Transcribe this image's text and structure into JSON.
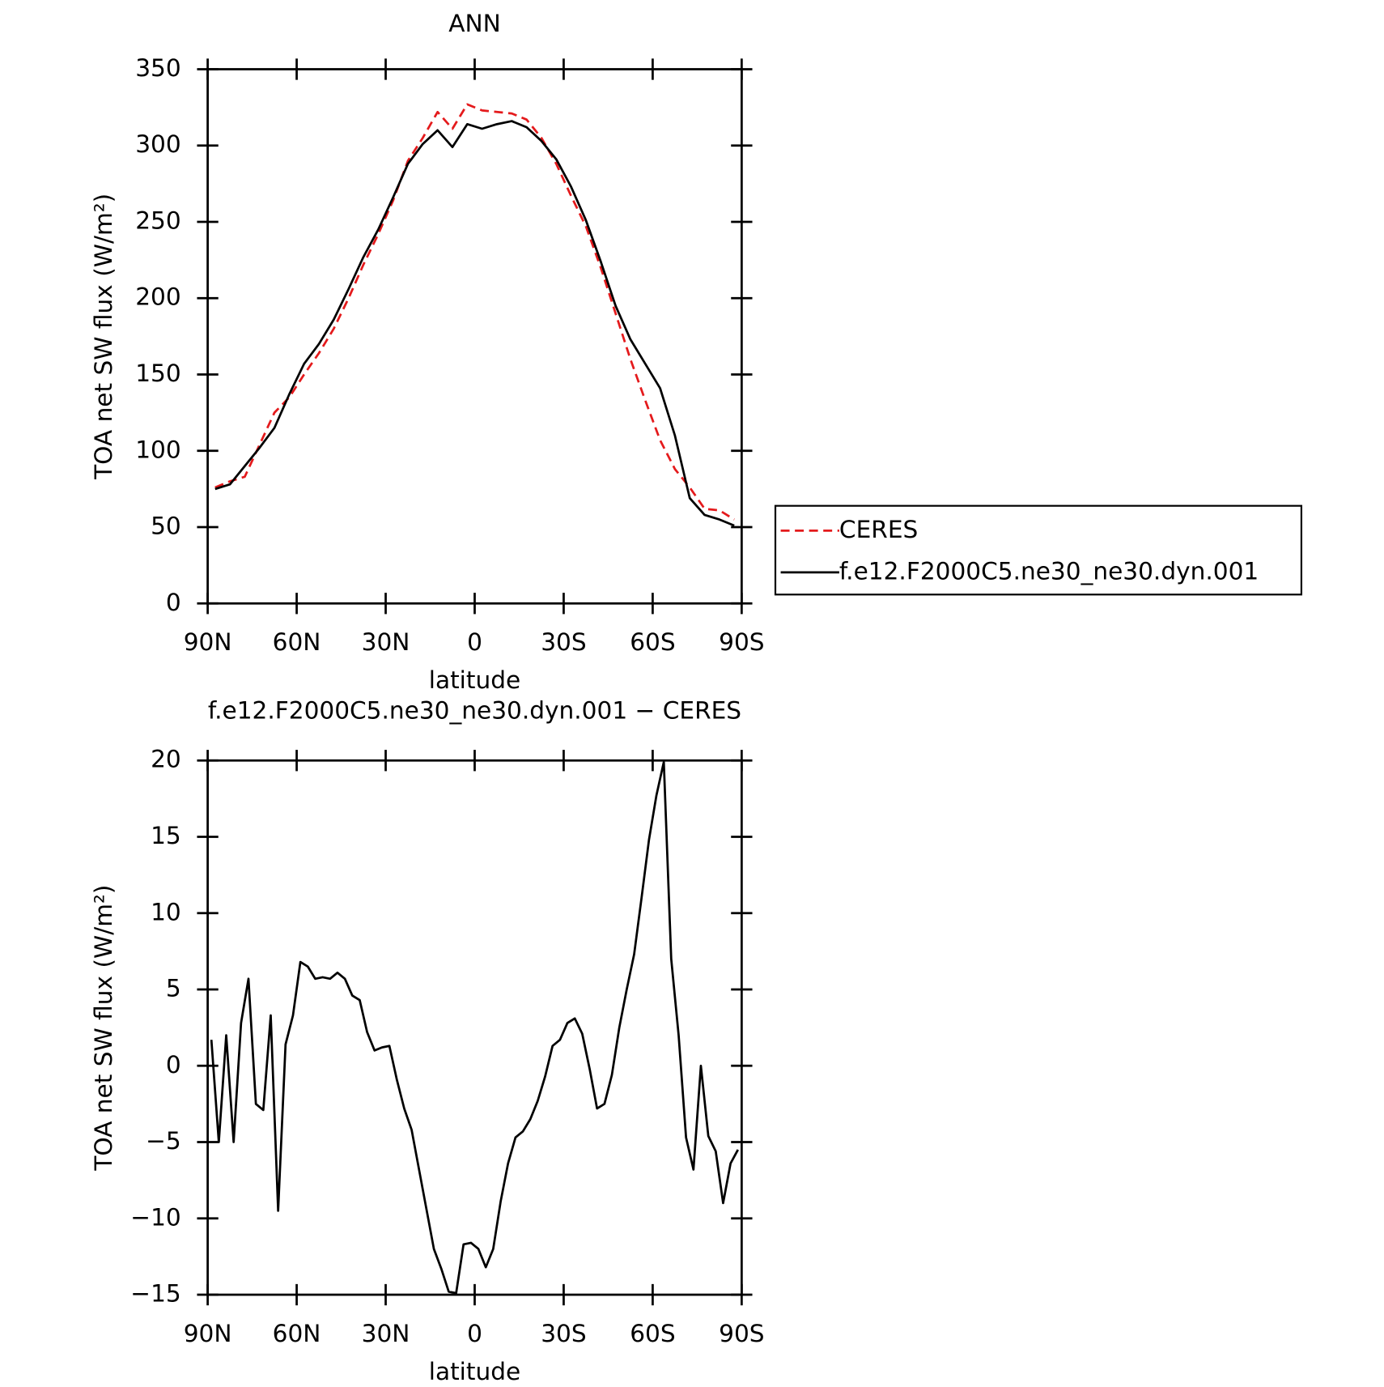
{
  "chart_data": [
    {
      "type": "line",
      "title": "ANN",
      "xlabel": "latitude",
      "ylabel": "TOA net SW flux (W/m²)",
      "x": [
        87.5,
        82.5,
        77.5,
        72.5,
        67.5,
        62.5,
        57.5,
        52.5,
        47.5,
        42.5,
        37.5,
        32.5,
        27.5,
        22.5,
        17.5,
        12.5,
        7.5,
        2.5,
        -2.5,
        -7.5,
        -12.5,
        -17.5,
        -22.5,
        -27.5,
        -32.5,
        -37.5,
        -42.5,
        -47.5,
        -52.5,
        -57.5,
        -62.5,
        -67.5,
        -72.5,
        -77.5,
        -82.5,
        -87.5
      ],
      "series": [
        {
          "name": "CERES",
          "color": "#e41a1c",
          "linestyle": "dashed",
          "values": [
            76,
            80,
            83,
            104,
            125,
            135,
            150,
            164,
            180,
            200,
            222,
            242,
            264,
            290,
            305,
            322,
            311,
            327,
            323,
            322,
            321,
            317,
            305,
            288,
            267,
            247,
            220,
            190,
            160,
            133,
            107,
            88,
            76,
            62,
            61,
            55
          ]
        },
        {
          "name": "f.e12.F2000C5.ne30_ne30.dyn.001",
          "color": "#000000",
          "linestyle": "solid",
          "values": [
            75,
            78,
            90,
            102,
            115,
            137,
            157,
            170,
            186,
            206,
            227,
            245,
            266,
            288,
            301,
            310,
            299,
            314,
            311,
            314,
            316,
            312,
            303,
            291,
            273,
            251,
            224,
            195,
            173,
            157,
            141,
            110,
            69,
            58,
            55,
            51
          ]
        }
      ],
      "xlim": [
        90,
        -90
      ],
      "xticks": [
        {
          "value": 90,
          "label": "90N"
        },
        {
          "value": 60,
          "label": "60N"
        },
        {
          "value": 30,
          "label": "30N"
        },
        0,
        {
          "value": -30,
          "label": "30S"
        },
        {
          "value": -60,
          "label": "60S"
        },
        {
          "value": -90,
          "label": "90S"
        }
      ],
      "ylim": [
        0,
        350
      ],
      "yticks": [
        0,
        50,
        100,
        150,
        200,
        250,
        300,
        350
      ],
      "legend": "right"
    },
    {
      "type": "line",
      "title": "f.e12.F2000C5.ne30_ne30.dyn.001 − CERES",
      "xlabel": "latitude",
      "ylabel": "TOA net SW flux (W/m²)",
      "x": [
        88.75,
        86.25,
        83.75,
        81.25,
        78.75,
        76.25,
        73.75,
        71.25,
        68.75,
        66.25,
        63.75,
        61.25,
        58.75,
        56.25,
        53.75,
        51.25,
        48.75,
        46.25,
        43.75,
        41.25,
        38.75,
        36.25,
        33.75,
        31.25,
        28.75,
        26.25,
        23.75,
        21.25,
        18.75,
        16.25,
        13.75,
        11.25,
        8.75,
        6.25,
        3.75,
        1.25,
        -1.25,
        -3.75,
        -6.25,
        -8.75,
        -11.25,
        -13.75,
        -16.25,
        -18.75,
        -21.25,
        -23.75,
        -26.25,
        -28.75,
        -31.25,
        -33.75,
        -36.25,
        -38.75,
        -41.25,
        -43.75,
        -46.25,
        -48.75,
        -51.25,
        -53.75,
        -56.25,
        -58.75,
        -61.25,
        -63.75,
        -66.25,
        -68.75,
        -71.25,
        -73.75,
        -76.25,
        -78.75,
        -81.25,
        -83.75,
        -86.25,
        -88.75
      ],
      "series": [
        {
          "name": "f.e12.F2000C5.ne30_ne30.dyn.001 − CERES",
          "color": "#000000",
          "linestyle": "solid",
          "values": [
            1.7,
            -5,
            2,
            -5,
            2.8,
            5.7,
            -2.5,
            -2.9,
            3.3,
            -9.5,
            1.4,
            3.3,
            6.8,
            6.5,
            5.7,
            5.8,
            5.7,
            6.1,
            5.7,
            4.6,
            4.3,
            2.2,
            1,
            1.2,
            1.3,
            -0.9,
            -2.8,
            -4.2,
            -6.8,
            -9.4,
            -12,
            -13.3,
            -14.8,
            -14.9,
            -11.7,
            -11.6,
            -12,
            -13.2,
            -12,
            -8.9,
            -6.4,
            -4.7,
            -4.3,
            -3.5,
            -2.3,
            -0.7,
            1.3,
            1.7,
            2.8,
            3.1,
            2.1,
            -0.2,
            -2.8,
            -2.5,
            -0.6,
            2.5,
            5,
            7.3,
            11,
            14.8,
            17.7,
            19.9,
            7,
            2,
            -4.7,
            -6.8,
            0,
            -4.6,
            -5.6,
            -9,
            -6.4,
            -5.5
          ]
        }
      ],
      "xlim": [
        90,
        -90
      ],
      "xticks": [
        {
          "value": 90,
          "label": "90N"
        },
        {
          "value": 60,
          "label": "60N"
        },
        {
          "value": 30,
          "label": "30N"
        },
        0,
        {
          "value": -30,
          "label": "30S"
        },
        {
          "value": -60,
          "label": "60S"
        },
        {
          "value": -90,
          "label": "90S"
        }
      ],
      "ylim": [
        -15,
        20
      ],
      "yticks": [
        {
          "value": -15,
          "label": "−15"
        },
        {
          "value": -10,
          "label": "−10"
        },
        {
          "value": -5,
          "label": "−5"
        },
        0,
        5,
        10,
        15,
        20
      ]
    }
  ]
}
